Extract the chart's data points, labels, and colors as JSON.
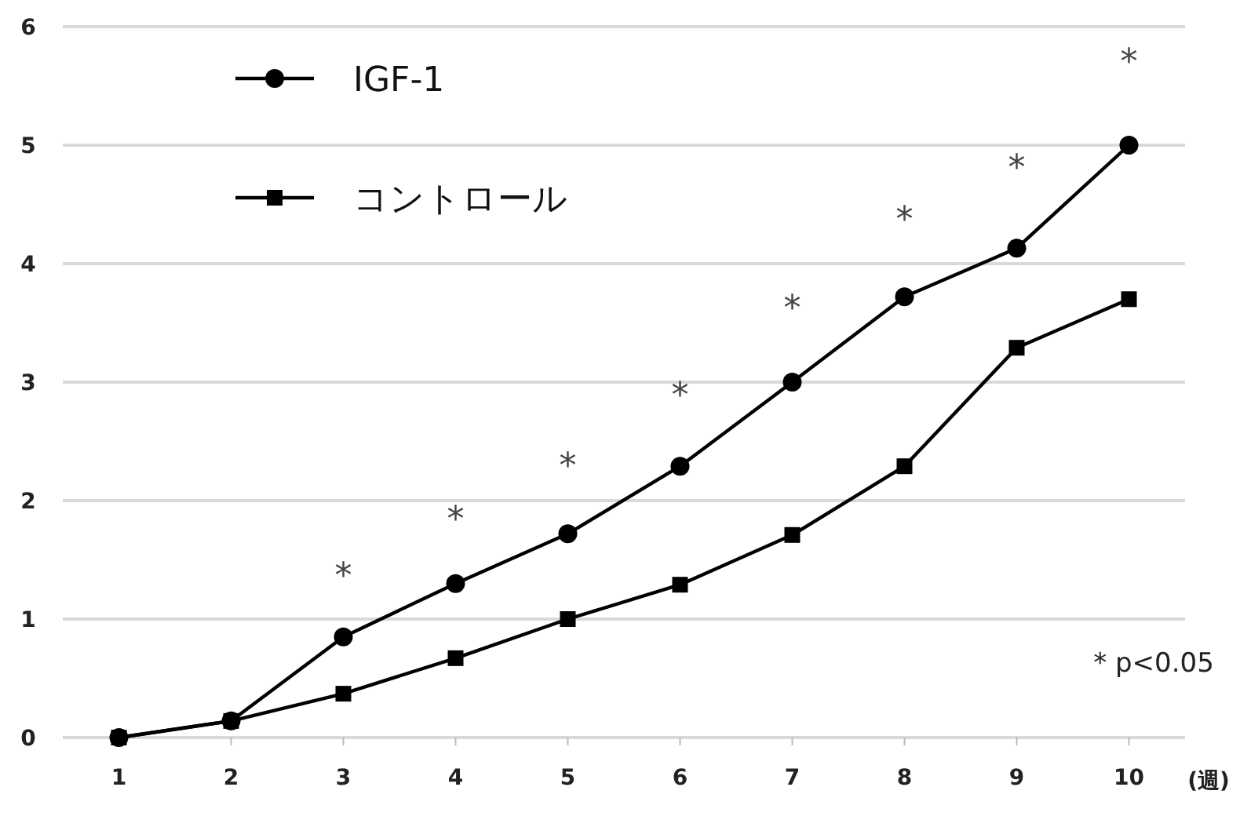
{
  "chart_data": {
    "type": "line",
    "xlabel": "(週)",
    "categories": [
      "1",
      "2",
      "3",
      "4",
      "5",
      "6",
      "7",
      "8",
      "9",
      "10"
    ],
    "series": [
      {
        "name": "IGF-1",
        "color": "#000000",
        "marker": "circle",
        "values": [
          0,
          0.14,
          0.85,
          1.3,
          1.72,
          2.29,
          3.0,
          3.72,
          4.13,
          5.0
        ]
      },
      {
        "name": "コントロール",
        "color": "#000000",
        "marker": "square",
        "values": [
          0,
          0.14,
          0.37,
          0.67,
          1.0,
          1.29,
          1.71,
          2.29,
          3.29,
          3.7
        ]
      }
    ],
    "ylim": [
      0,
      6
    ],
    "yticks": [
      0,
      1,
      2,
      3,
      4,
      5,
      6
    ],
    "grid": "y",
    "legend": "top left",
    "annotations": [
      "*",
      "*",
      "*",
      "*",
      "*",
      "*",
      "*",
      "*",
      "* p<0.05"
    ]
  }
}
